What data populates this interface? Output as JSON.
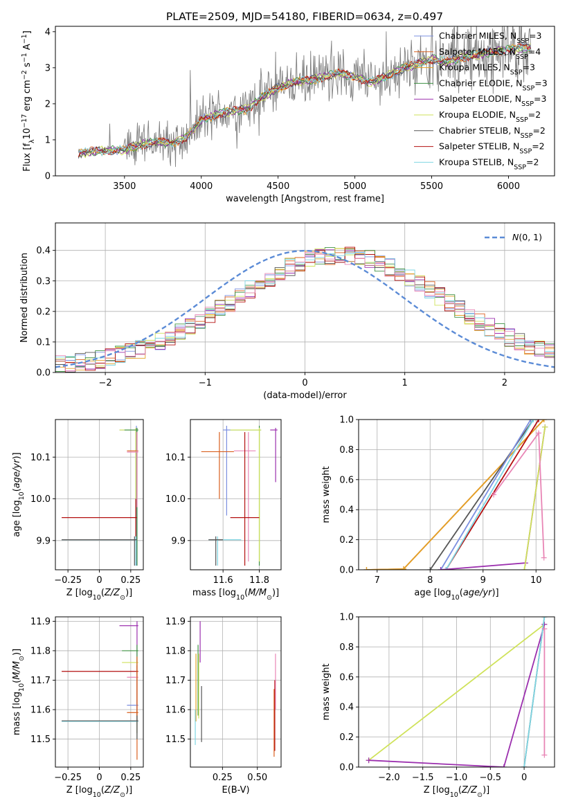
{
  "figure": {
    "title": "PLATE=2509, MJD=54180, FIBERID=0634, z=0.497"
  },
  "colors": {
    "Chabrier MILES": "#7b8fe0",
    "Salpeter MILES": "#d95f1e",
    "Kroupa MILES": "#e3a126",
    "Chabrier ELODIE": "#3d9142",
    "Salpeter ELODIE": "#9b2fae",
    "Kroupa ELODIE": "#cfe25a",
    "Chabrier STELIB": "#555555",
    "Salpeter STELIB": "#b30f0f",
    "Kroupa STELIB": "#7fd6e3",
    "data": "#808080",
    "pink": "#e885b5",
    "normal": "#5b8bd6"
  },
  "chart_data": [
    {
      "id": "spectrum",
      "type": "line",
      "xlabel": "wavelength [Angstrom, rest frame]",
      "ylabel": "Flux [f_λ 10^-17 erg cm^-2 s^-1 A^-1]",
      "xlim": [
        3050,
        6300
      ],
      "ylim": [
        0,
        4.15
      ],
      "xticks": [
        3500,
        4000,
        4500,
        5000,
        5500,
        6000
      ],
      "yticks": [
        0,
        1,
        2,
        3,
        4
      ],
      "continuum": [
        [
          3200,
          0.62
        ],
        [
          3300,
          0.68
        ],
        [
          3400,
          0.7
        ],
        [
          3500,
          0.72
        ],
        [
          3600,
          0.85
        ],
        [
          3700,
          0.95
        ],
        [
          3800,
          0.9
        ],
        [
          3900,
          1.05
        ],
        [
          4000,
          1.55
        ],
        [
          4100,
          1.7
        ],
        [
          4200,
          1.8
        ],
        [
          4300,
          1.85
        ],
        [
          4400,
          2.2
        ],
        [
          4500,
          2.45
        ],
        [
          4600,
          2.6
        ],
        [
          4700,
          2.65
        ],
        [
          4800,
          2.75
        ],
        [
          4900,
          2.85
        ],
        [
          5000,
          2.75
        ],
        [
          5100,
          2.6
        ],
        [
          5200,
          2.75
        ],
        [
          5300,
          2.95
        ],
        [
          5400,
          3.1
        ],
        [
          5500,
          3.25
        ],
        [
          5600,
          3.15
        ],
        [
          5700,
          3.3
        ],
        [
          5800,
          3.35
        ],
        [
          5900,
          3.45
        ],
        [
          6000,
          3.5
        ],
        [
          6100,
          3.55
        ],
        [
          6150,
          3.55
        ]
      ],
      "legend": [
        {
          "name": "Chabrier MILES",
          "sup": "SSP",
          "n": "3"
        },
        {
          "name": "Salpeter MILES",
          "sup": "SSP",
          "n": "4"
        },
        {
          "name": "Kroupa MILES",
          "sup": "SSP",
          "n": "3"
        },
        {
          "name": "Chabrier ELODIE",
          "sup": "SSP",
          "n": "3"
        },
        {
          "name": "Salpeter ELODIE",
          "sup": "SSP",
          "n": "3"
        },
        {
          "name": "Kroupa ELODIE",
          "sup": "SSP",
          "n": "2"
        },
        {
          "name": "Chabrier STELIB",
          "sup": "SSP",
          "n": "2"
        },
        {
          "name": "Salpeter STELIB",
          "sup": "SSP",
          "n": "2"
        },
        {
          "name": "Kroupa STELIB",
          "sup": "SSP",
          "n": "2"
        }
      ]
    },
    {
      "id": "residuals",
      "type": "line",
      "xlabel": "(data-model)/error",
      "ylabel": "Normed distribution",
      "xlim": [
        -2.5,
        2.5
      ],
      "ylim": [
        0,
        0.49
      ],
      "xticks": [
        -2,
        -1,
        0,
        1,
        2
      ],
      "yticks": [
        0.0,
        0.1,
        0.2,
        0.3,
        0.4
      ],
      "legend_label": "N(0,1)",
      "normal": {
        "mean": 0,
        "sigma": 1
      }
    },
    {
      "id": "age-vs-Z",
      "type": "scatter",
      "xlabel": "Z [log10(Z/Z⊙)]",
      "ylabel": "age [log10(age/yr)]",
      "xlim": [
        -0.35,
        0.35
      ],
      "ylim": [
        9.83,
        10.19
      ],
      "xticks": [
        -0.25,
        0.0,
        0.25
      ],
      "yticks": [
        9.9,
        10.0,
        10.1
      ],
      "points": [
        {
          "x": 0.295,
          "y": 10.165,
          "xlo": 0.16,
          "xhi": 0.31,
          "ylo": 9.84,
          "yhi": 10.175,
          "c": "Chabrier MILES"
        },
        {
          "x": 0.29,
          "y": 10.165,
          "xlo": 0.16,
          "xhi": 0.31,
          "ylo": 9.85,
          "yhi": 10.17,
          "c": "Kroupa ELODIE"
        },
        {
          "x": 0.3,
          "y": 10.165,
          "xlo": 0.2,
          "xhi": 0.31,
          "ylo": 9.84,
          "yhi": 10.17,
          "c": "Chabrier ELODIE"
        },
        {
          "x": 0.3,
          "y": 10.115,
          "xlo": 0.22,
          "xhi": 0.31,
          "ylo": 9.98,
          "yhi": 10.16,
          "c": "Salpeter MILES"
        },
        {
          "x": 0.3,
          "y": 10.112,
          "xlo": 0.22,
          "xhi": 0.31,
          "ylo": 9.98,
          "yhi": 10.16,
          "c": "pink"
        },
        {
          "x": 0.29,
          "y": 9.955,
          "xlo": -0.3,
          "xhi": 0.3,
          "ylo": 9.9,
          "yhi": 10.0,
          "c": "Salpeter STELIB"
        },
        {
          "x": 0.29,
          "y": 9.902,
          "xlo": -0.3,
          "xhi": 0.3,
          "ylo": 9.84,
          "yhi": 9.91,
          "c": "Kroupa STELIB"
        },
        {
          "x": 0.28,
          "y": 9.902,
          "xlo": -0.3,
          "xhi": 0.3,
          "ylo": 9.84,
          "yhi": 9.91,
          "c": "Chabrier STELIB"
        }
      ]
    },
    {
      "id": "age-vs-mass",
      "type": "scatter",
      "xlabel": "mass [log10(M/M⊙)]",
      "ylabel": "",
      "xlim": [
        11.42,
        11.92
      ],
      "ylim": [
        9.83,
        10.19
      ],
      "xticks": [
        11.6,
        11.8
      ],
      "yticks": [
        9.9,
        10.0,
        10.1
      ],
      "points": [
        {
          "x": 11.89,
          "y": 10.165,
          "xlo": 11.86,
          "xhi": 11.9,
          "ylo": 10.04,
          "yhi": 10.17,
          "c": "Salpeter ELODIE"
        },
        {
          "x": 11.8,
          "y": 10.165,
          "xlo": 11.64,
          "xhi": 11.81,
          "ylo": 9.84,
          "yhi": 10.175,
          "c": "Chabrier ELODIE"
        },
        {
          "x": 11.8,
          "y": 10.165,
          "xlo": 11.64,
          "xhi": 11.81,
          "ylo": 9.85,
          "yhi": 10.17,
          "c": "Kroupa ELODIE"
        },
        {
          "x": 11.62,
          "y": 10.165,
          "xlo": 11.6,
          "xhi": 11.64,
          "ylo": 9.96,
          "yhi": 10.175,
          "c": "Chabrier MILES"
        },
        {
          "x": 11.74,
          "y": 10.115,
          "xlo": 11.66,
          "xhi": 11.78,
          "ylo": 9.85,
          "yhi": 10.16,
          "c": "pink"
        },
        {
          "x": 11.58,
          "y": 10.113,
          "xlo": 11.48,
          "xhi": 11.66,
          "ylo": 10.0,
          "yhi": 10.16,
          "c": "Salpeter MILES"
        },
        {
          "x": 11.72,
          "y": 9.955,
          "xlo": 11.64,
          "xhi": 11.8,
          "ylo": 9.84,
          "yhi": 10.16,
          "c": "Salpeter STELIB"
        },
        {
          "x": 11.57,
          "y": 9.902,
          "xlo": 11.52,
          "xhi": 11.7,
          "ylo": 9.84,
          "yhi": 9.91,
          "c": "Kroupa STELIB"
        },
        {
          "x": 11.56,
          "y": 9.902,
          "xlo": 11.52,
          "xhi": 11.6,
          "ylo": 9.84,
          "yhi": 9.91,
          "c": "Chabrier STELIB"
        }
      ]
    },
    {
      "id": "massweight-vs-age",
      "type": "line",
      "xlabel": "age [log10(age/yr)]",
      "ylabel": "mass weight",
      "xlim": [
        6.65,
        10.35
      ],
      "ylim": [
        0,
        1
      ],
      "xticks": [
        7,
        8,
        9,
        10
      ],
      "yticks": [
        0.0,
        0.2,
        0.4,
        0.6,
        0.8,
        1.0
      ],
      "series": [
        {
          "c": "Salpeter MILES",
          "pts": [
            [
              6.8,
              0
            ],
            [
              7.5,
              0.005
            ],
            [
              10.15,
              1.0
            ]
          ]
        },
        {
          "c": "Kroupa MILES",
          "pts": [
            [
              6.8,
              0
            ],
            [
              7.5,
              0.005
            ],
            [
              10.15,
              1.0
            ]
          ]
        },
        {
          "c": "Chabrier STELIB",
          "pts": [
            [
              8.0,
              0
            ],
            [
              9.95,
              1.0
            ]
          ]
        },
        {
          "c": "Salpeter STELIB",
          "pts": [
            [
              8.3,
              0
            ],
            [
              10.05,
              1.0
            ]
          ]
        },
        {
          "c": "Chabrier MILES",
          "pts": [
            [
              8.2,
              0
            ],
            [
              9.9,
              1.0
            ]
          ]
        },
        {
          "c": "Kroupa STELIB",
          "pts": [
            [
              8.3,
              0
            ],
            [
              9.95,
              1.0
            ]
          ]
        },
        {
          "c": "Salpeter ELODIE",
          "pts": [
            [
              8.2,
              0
            ],
            [
              9.8,
              0.045
            ],
            [
              10.17,
              0.95
            ]
          ]
        },
        {
          "c": "Kroupa ELODIE",
          "pts": [
            [
              9.78,
              0
            ],
            [
              10.17,
              0.95
            ]
          ]
        },
        {
          "c": "pink",
          "pts": [
            [
              9.2,
              0.5
            ],
            [
              10.05,
              0.91
            ],
            [
              10.15,
              0.08
            ]
          ]
        }
      ]
    },
    {
      "id": "mass-vs-Z",
      "type": "scatter",
      "xlabel": "Z [log10(Z/Z⊙)]",
      "ylabel": "mass [log10(M/M⊙)]",
      "xlim": [
        -0.35,
        0.35
      ],
      "ylim": [
        11.405,
        11.915
      ],
      "xticks": [
        -0.25,
        0.0,
        0.25
      ],
      "yticks": [
        11.5,
        11.6,
        11.7,
        11.8,
        11.9
      ],
      "points": [
        {
          "x": 0.3,
          "y": 11.885,
          "xlo": 0.16,
          "xhi": 0.31,
          "ylo": 11.52,
          "yhi": 11.9,
          "c": "Salpeter ELODIE"
        },
        {
          "x": 0.3,
          "y": 11.8,
          "xlo": 0.18,
          "xhi": 0.31,
          "ylo": 11.52,
          "yhi": 11.82,
          "c": "Chabrier ELODIE"
        },
        {
          "x": 0.3,
          "y": 11.76,
          "xlo": 0.18,
          "xhi": 0.31,
          "ylo": 11.52,
          "yhi": 11.78,
          "c": "Kroupa ELODIE"
        },
        {
          "x": 0.3,
          "y": 11.73,
          "xlo": -0.3,
          "xhi": 0.31,
          "ylo": 11.56,
          "yhi": 11.75,
          "c": "Salpeter STELIB"
        },
        {
          "x": 0.3,
          "y": 11.71,
          "xlo": 0.22,
          "xhi": 0.31,
          "ylo": 11.6,
          "yhi": 11.72,
          "c": "pink"
        },
        {
          "x": 0.3,
          "y": 11.615,
          "xlo": 0.22,
          "xhi": 0.31,
          "ylo": 11.6,
          "yhi": 11.62,
          "c": "Chabrier MILES"
        },
        {
          "x": 0.3,
          "y": 11.59,
          "xlo": 0.22,
          "xhi": 0.31,
          "ylo": 11.43,
          "yhi": 11.78,
          "c": "Salpeter MILES"
        },
        {
          "x": 0.3,
          "y": 11.56,
          "xlo": -0.3,
          "xhi": 0.31,
          "ylo": 11.5,
          "yhi": 11.58,
          "c": "Kroupa STELIB"
        },
        {
          "x": 0.3,
          "y": 11.562,
          "xlo": -0.3,
          "xhi": 0.31,
          "ylo": 11.5,
          "yhi": 11.58,
          "c": "Chabrier STELIB"
        }
      ]
    },
    {
      "id": "mass-vs-EBV",
      "type": "scatter",
      "xlabel": "E(B-V)",
      "ylabel": "",
      "xlim": [
        0.02,
        0.67
      ],
      "ylim": [
        11.405,
        11.915
      ],
      "xticks": [
        0.25,
        0.5
      ],
      "yticks": [
        11.5,
        11.6,
        11.7,
        11.8,
        11.9
      ],
      "points": [
        {
          "x": 0.09,
          "y": 11.83,
          "ylo": 11.76,
          "yhi": 11.9,
          "c": "Salpeter ELODIE"
        },
        {
          "x": 0.075,
          "y": 11.7,
          "ylo": 11.58,
          "yhi": 11.82,
          "c": "Chabrier ELODIE"
        },
        {
          "x": 0.08,
          "y": 11.65,
          "ylo": 11.57,
          "yhi": 11.79,
          "c": "Kroupa ELODIE"
        },
        {
          "x": 0.06,
          "y": 11.65,
          "ylo": 11.56,
          "yhi": 11.79,
          "c": "Kroupa MILES"
        },
        {
          "x": 0.1,
          "y": 11.6,
          "ylo": 11.49,
          "yhi": 11.68,
          "c": "Chabrier STELIB"
        },
        {
          "x": 0.055,
          "y": 11.55,
          "ylo": 11.48,
          "yhi": 11.6,
          "c": "Kroupa STELIB"
        },
        {
          "x": 0.62,
          "y": 11.55,
          "ylo": 11.44,
          "yhi": 11.67,
          "c": "Salpeter MILES"
        },
        {
          "x": 0.625,
          "y": 11.6,
          "ylo": 11.46,
          "yhi": 11.7,
          "c": "Salpeter STELIB"
        },
        {
          "x": 0.63,
          "y": 11.7,
          "ylo": 11.6,
          "yhi": 11.79,
          "c": "pink"
        }
      ]
    },
    {
      "id": "massweight-vs-Z",
      "type": "line",
      "xlabel": "Z [log10(Z/Z⊙)]",
      "ylabel": "mass weight",
      "xlim": [
        -2.45,
        0.45
      ],
      "ylim": [
        0,
        1
      ],
      "xticks": [
        -2.0,
        -1.5,
        -1.0,
        -0.5,
        0.0
      ],
      "yticks": [
        0.0,
        0.2,
        0.4,
        0.6,
        0.8,
        1.0
      ],
      "series": [
        {
          "c": "Kroupa ELODIE",
          "pts": [
            [
              -2.3,
              0.045
            ],
            [
              0.3,
              0.95
            ]
          ]
        },
        {
          "c": "Salpeter ELODIE",
          "pts": [
            [
              -2.3,
              0.045
            ],
            [
              -0.3,
              0.0
            ],
            [
              0.3,
              0.95
            ]
          ]
        },
        {
          "c": "Chabrier STELIB",
          "pts": [
            [
              0.0,
              0.0
            ],
            [
              0.3,
              1.0
            ]
          ]
        },
        {
          "c": "Kroupa STELIB",
          "pts": [
            [
              0.0,
              0.0
            ],
            [
              0.3,
              1.0
            ]
          ]
        },
        {
          "c": "pink",
          "pts": [
            [
              0.3,
              0.08
            ],
            [
              0.3,
              0.92
            ]
          ]
        }
      ]
    }
  ]
}
